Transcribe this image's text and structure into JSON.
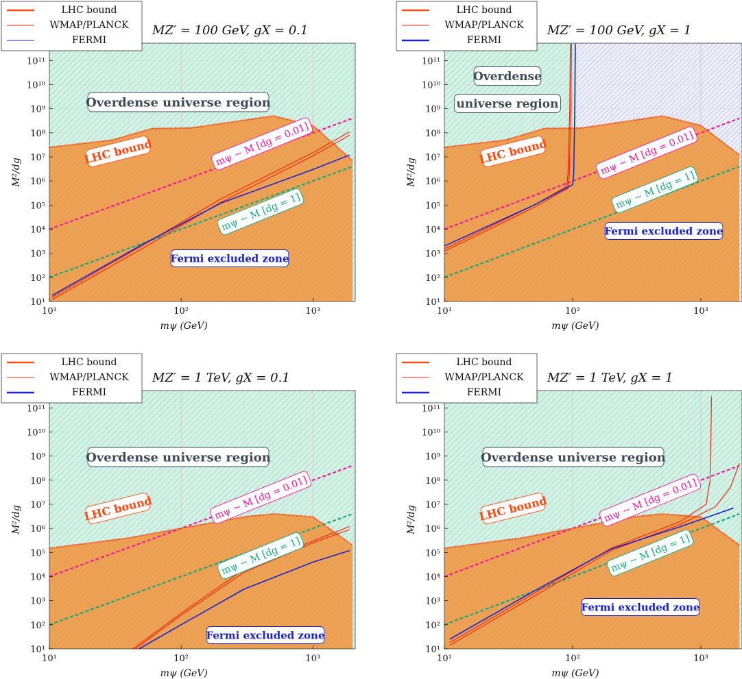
{
  "colors": {
    "lhc": "#ff4a12",
    "lhc_fill": "#f2a14a",
    "relic": "#ef2a12",
    "fermi": "#1a22d0",
    "fermi_box_text": "#1a22d0",
    "overdense_fill": "#b8e8d6",
    "overdense_box_text": "#3c4a5a",
    "magenta": "#f2189a",
    "teal": "#13a87a",
    "grid": "#d9d9d9",
    "fermi_hatch": "#7d86d8",
    "lhc_hatch": "#c9756a"
  },
  "labels": {
    "overdense_long": "Overdense universe region",
    "overdense_line1": "Overdense",
    "overdense_line2": "universe region",
    "lhc_bound": "LHC bound",
    "fermi_excluded": "Fermi excluded zone",
    "dm_001": "mψ ∼ M [dg = 0.01]",
    "dm_1": "mψ ∼ M [dg = 1]"
  },
  "chart_data": [
    {
      "type": "line",
      "title": "M_Z' = 100 GeV, g_X = 0.1",
      "title_text": "MZ′ = 100 GeV,   gX = 0.1",
      "xlabel": "mψ (GeV)",
      "ylabel": "M²/dg",
      "xscale": "log",
      "yscale": "log",
      "xlim": [
        10,
        2000
      ],
      "ylim": [
        10,
        500000000000.0
      ],
      "x_ticks": [
        "10¹",
        "10²",
        "10³"
      ],
      "y_ticks": [
        "10¹",
        "10²",
        "10³",
        "10⁴",
        "10⁵",
        "10⁶",
        "10⁷",
        "10⁸",
        "10⁹",
        "10¹⁰",
        "10¹¹"
      ],
      "legend": {
        "position": "top-left",
        "entries": [
          "LHC bound",
          "WMAP/PLANCK",
          "FERMI"
        ]
      },
      "series": [
        {
          "name": "LHC bound",
          "x": [
            10,
            30,
            60,
            120,
            500,
            1000,
            2000
          ],
          "y": [
            25000000.0,
            50000000.0,
            150000000.0,
            160000000.0,
            500000000.0,
            200000000.0,
            7000000.0
          ]
        },
        {
          "name": "WMAP/PLANCK",
          "x": [
            10.5,
            50,
            200,
            1000,
            1900
          ],
          "y": [
            15,
            2000,
            180000.0,
            15000000.0,
            110000000.0
          ]
        },
        {
          "name": "WMAP/PLANCK",
          "x": [
            10.5,
            50,
            200,
            1000,
            1900
          ],
          "y": [
            12,
            1500,
            130000.0,
            11000000.0,
            80000000.0
          ]
        },
        {
          "name": "FERMI",
          "x": [
            10.5,
            50,
            200,
            1000,
            1900
          ],
          "y": [
            18,
            2200,
            120000.0,
            3000000.0,
            12000000.0
          ]
        }
      ],
      "overdense_region": true,
      "fermi_hatch_band": null,
      "annotations": [
        "Overdense universe region",
        "LHC bound",
        "Fermi excluded zone",
        "mψ ∼ M [dg = 0.01]",
        "mψ ∼ M [dg = 1]"
      ]
    },
    {
      "type": "line",
      "title": "M_Z' = 100 GeV, g_X = 1",
      "title_text": "MZ′ = 100 GeV,   gX = 1",
      "xlabel": "mψ (GeV)",
      "ylabel": "M²/dg",
      "xscale": "log",
      "yscale": "log",
      "xlim": [
        10,
        2000
      ],
      "ylim": [
        10,
        500000000000.0
      ],
      "x_ticks": [
        "10¹",
        "10²",
        "10³"
      ],
      "y_ticks": [
        "10¹",
        "10²",
        "10³",
        "10⁴",
        "10⁵",
        "10⁶",
        "10⁷",
        "10⁸",
        "10⁹",
        "10¹⁰",
        "10¹¹"
      ],
      "legend": {
        "position": "top-left",
        "entries": [
          "LHC bound",
          "WMAP/PLANCK",
          "FERMI"
        ]
      },
      "series": [
        {
          "name": "LHC bound",
          "x": [
            10,
            30,
            60,
            120,
            500,
            1000,
            2000
          ],
          "y": [
            25000000.0,
            50000000.0,
            150000000.0,
            160000000.0,
            500000000.0,
            200000000.0,
            12000000.0
          ]
        },
        {
          "name": "WMAP/PLANCK",
          "x": [
            10,
            50,
            90,
            92,
            95,
            96
          ],
          "y": [
            1500,
            100000.0,
            600000.0,
            2000000.0,
            1000000000.0,
            500000000000.0
          ]
        },
        {
          "name": "WMAP/PLANCK",
          "x": [
            10,
            50,
            92,
            94,
            97,
            98
          ],
          "y": [
            1200,
            80000.0,
            500000.0,
            1500000.0,
            1000000000.0,
            500000000000.0
          ]
        },
        {
          "name": "FERMI",
          "x": [
            10,
            50,
            100,
            102,
            104,
            105
          ],
          "y": [
            2000,
            100000.0,
            700000.0,
            2000000.0,
            1000000000.0,
            500000000000.0
          ]
        }
      ],
      "overdense_region": true,
      "fermi_hatch_band": {
        "x_from": 105,
        "y_from": "lhc",
        "y_to": 500000000000.0
      },
      "annotations": [
        "Overdense",
        "universe region",
        "LHC bound",
        "Fermi excluded zone",
        "mψ ∼ M [dg = 0.01]",
        "mψ ∼ M [dg = 1]"
      ]
    },
    {
      "type": "line",
      "title": "M_Z' = 1 TeV, g_X = 0.1",
      "title_text": "MZ′ = 1 TeV,   gX = 0.1",
      "xlabel": "mψ (GeV)",
      "ylabel": "M²/dg",
      "xscale": "log",
      "yscale": "log",
      "xlim": [
        10,
        2000
      ],
      "ylim": [
        10,
        500000000000.0
      ],
      "x_ticks": [
        "10¹",
        "10²",
        "10³"
      ],
      "y_ticks": [
        "10¹",
        "10²",
        "10³",
        "10⁴",
        "10⁵",
        "10⁶",
        "10⁷",
        "10⁸",
        "10⁹",
        "10¹⁰",
        "10¹¹"
      ],
      "legend": {
        "position": "top-left",
        "entries": [
          "LHC bound",
          "WMAP/PLANCK",
          "FERMI"
        ]
      },
      "series": [
        {
          "name": "LHC bound",
          "x": [
            10,
            40,
            100,
            300,
            500,
            1000,
            2000
          ],
          "y": [
            150000.0,
            400000.0,
            1000000.0,
            3000000.0,
            4000000.0,
            3000000.0,
            200000.0
          ]
        },
        {
          "name": "WMAP/PLANCK",
          "x": [
            43,
            100,
            300,
            1000,
            1900
          ],
          "y": [
            10,
            300,
            20000.0,
            300000.0,
            1200000.0
          ]
        },
        {
          "name": "WMAP/PLANCK",
          "x": [
            45,
            100,
            300,
            1000,
            1900
          ],
          "y": [
            10,
            250,
            15000.0,
            250000.0,
            900000.0
          ]
        },
        {
          "name": "FERMI",
          "x": [
            48,
            100,
            300,
            1000,
            1900
          ],
          "y": [
            10,
            100,
            3000.0,
            40000.0,
            120000.0
          ]
        }
      ],
      "overdense_region": true,
      "fermi_hatch_band": null,
      "annotations": [
        "Overdense universe region",
        "LHC bound",
        "Fermi excluded zone",
        "mψ ∼ M [dg = 0.01]",
        "mψ ∼ M [dg = 1]"
      ]
    },
    {
      "type": "line",
      "title": "M_Z' = 1 TeV, g_X = 1",
      "title_text": "MZ′ = 1 TeV,   gX = 1",
      "xlabel": "mψ (GeV)",
      "ylabel": "M²/dg",
      "xscale": "log",
      "yscale": "log",
      "xlim": [
        10,
        2000
      ],
      "ylim": [
        10,
        500000000000.0
      ],
      "x_ticks": [
        "10¹",
        "10²",
        "10³"
      ],
      "y_ticks": [
        "10¹",
        "10²",
        "10³",
        "10⁴",
        "10⁵",
        "10⁶",
        "10⁷",
        "10⁸",
        "10⁹",
        "10¹⁰",
        "10¹¹"
      ],
      "legend": {
        "position": "top-left",
        "entries": [
          "LHC bound",
          "WMAP/PLANCK",
          "FERMI"
        ]
      },
      "series": [
        {
          "name": "LHC bound",
          "x": [
            10,
            40,
            100,
            300,
            500,
            1000,
            2000
          ],
          "y": [
            150000.0,
            400000.0,
            1000000.0,
            3000000.0,
            4000000.0,
            3000000.0,
            200000.0
          ]
        },
        {
          "name": "WMAP/PLANCK",
          "x": [
            11,
            50,
            200,
            700,
            1100,
            1180,
            1200,
            1210
          ],
          "y": [
            18,
            2000,
            150000.0,
            2000000.0,
            10000000.0,
            100000000.0,
            10000000000.0,
            300000000000.0
          ]
        },
        {
          "name": "WMAP/PLANCK",
          "x": [
            11,
            50,
            200,
            700,
            1300,
            1700,
            2000
          ],
          "y": [
            14,
            1500,
            120000.0,
            1500000.0,
            8000000.0,
            50000000.0,
            500000000.0
          ]
        },
        {
          "name": "FERMI",
          "x": [
            11,
            50,
            200,
            700,
            1800
          ],
          "y": [
            25,
            2500,
            140000.0,
            1200000.0,
            7000000.0
          ]
        }
      ],
      "overdense_region": true,
      "fermi_hatch_band": null,
      "annotations": [
        "Overdense universe region",
        "LHC bound",
        "Fermi excluded zone",
        "mψ ∼ M [dg = 0.01]",
        "mψ ∼ M [dg = 1]"
      ]
    }
  ]
}
